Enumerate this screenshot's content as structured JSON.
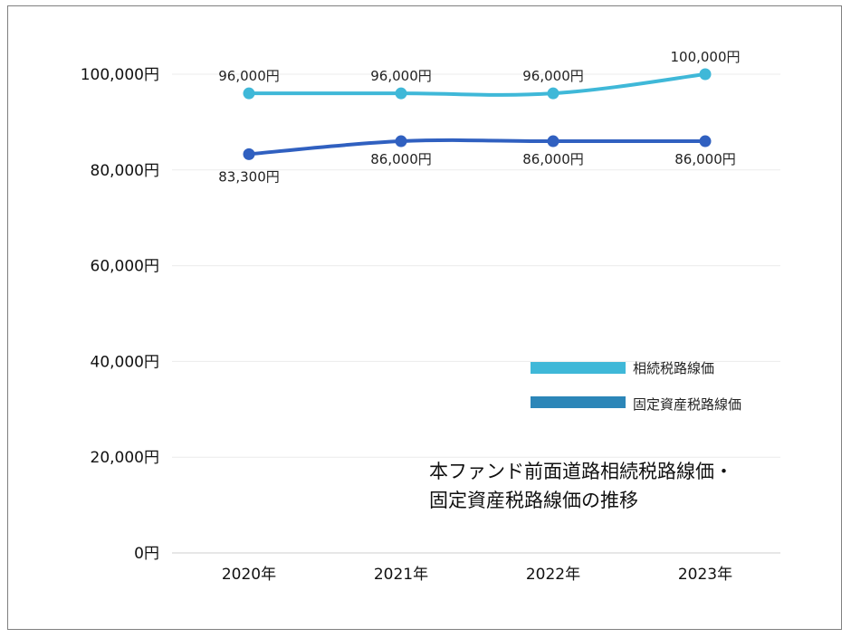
{
  "chart_data": {
    "type": "line",
    "title_lines": [
      "本ファンド前面道路相続税路線価・",
      "固定資産税路線価の推移"
    ],
    "categories": [
      "2020年",
      "2021年",
      "2022年",
      "2023年"
    ],
    "ylim": [
      0,
      100000
    ],
    "y_ticks": [
      {
        "value": 0,
        "label": "0円"
      },
      {
        "value": 20000,
        "label": "20,000円"
      },
      {
        "value": 40000,
        "label": "40,000円"
      },
      {
        "value": 60000,
        "label": "60,000円"
      },
      {
        "value": 80000,
        "label": "80,000円"
      },
      {
        "value": 100000,
        "label": "100,000円"
      }
    ],
    "grid": true,
    "legend_position": "right-middle",
    "series": [
      {
        "name": "相続税路線価",
        "color": "#3fb8d8",
        "legend_color": "#3fb8d8",
        "values": [
          96000,
          96000,
          96000,
          100000
        ],
        "labels": [
          "96,000円",
          "96,000円",
          "96,000円",
          "100,000円"
        ],
        "label_side": "above"
      },
      {
        "name": "固定資産税路線価",
        "color": "#3060c0",
        "legend_color": "#2c86b8",
        "values": [
          83300,
          86000,
          86000,
          86000
        ],
        "labels": [
          "83,300円",
          "86,000円",
          "86,000円",
          "86,000円"
        ],
        "label_side": "below"
      }
    ]
  }
}
